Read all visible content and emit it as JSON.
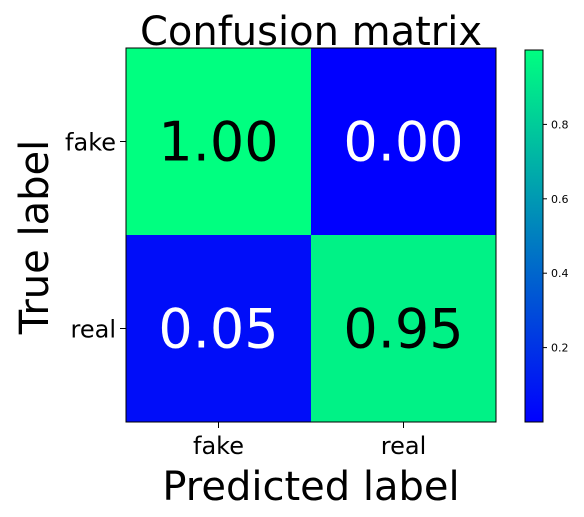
{
  "chart_data": {
    "type": "heatmap",
    "title": "Confusion matrix",
    "xlabel": "Predicted label",
    "ylabel": "True label",
    "x_categories": [
      "fake",
      "real"
    ],
    "y_categories": [
      "fake",
      "real"
    ],
    "values": [
      [
        1.0,
        0.0
      ],
      [
        0.05,
        0.95
      ]
    ],
    "cell_labels": [
      [
        "1.00",
        "0.00"
      ],
      [
        "0.05",
        "0.95"
      ]
    ],
    "colormap": "winter",
    "color_low": "#0000ff",
    "color_high": "#00ff80",
    "colorbar": {
      "range": [
        0,
        1
      ],
      "ticks": [
        0.2,
        0.4,
        0.6,
        0.8
      ],
      "tick_labels": [
        "0.2",
        "0.4",
        "0.6",
        "0.8"
      ]
    }
  }
}
